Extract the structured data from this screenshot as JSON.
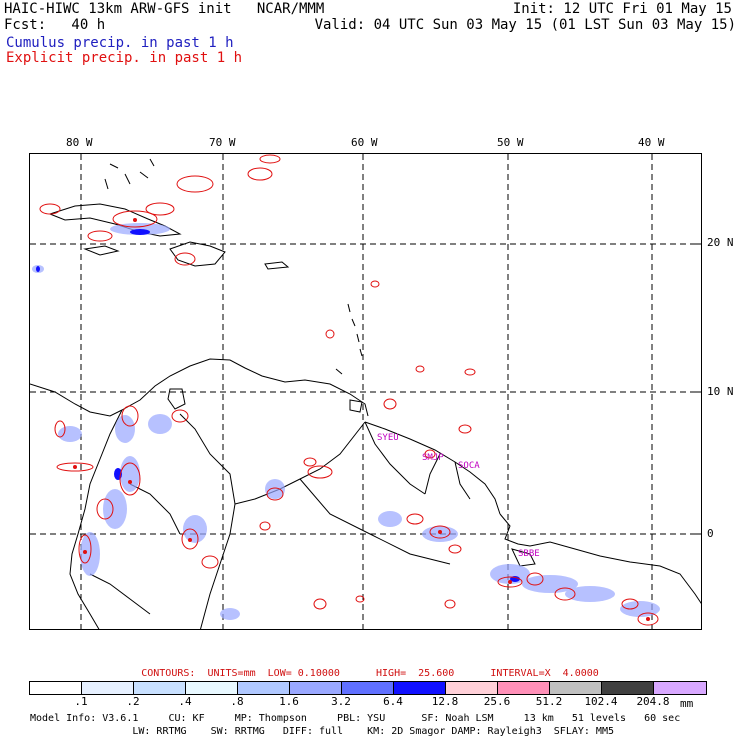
{
  "header": {
    "model_title": "HAIC-HIWC 13km ARW-GFS init   NCAR/MMM",
    "forecast": "Fcst:   40 h",
    "init": "Init: 12 UTC Fri 01 May 15",
    "valid": "Valid: 04 UTC Sun 03 May 15 (01 LST Sun 03 May 15)",
    "cumulus_label": "Cumulus precip. in past 1 h",
    "explicit_label": "Explicit precip. in past 1 h"
  },
  "colors": {
    "cumulus": "#2020c0",
    "explicit": "#e01010",
    "coast": "#000000",
    "station": "#c000c0"
  },
  "map": {
    "longitude_labels": [
      "80 W",
      "70 W",
      "60 W",
      "50 W",
      "40 W"
    ],
    "latitude_labels": [
      "20 N",
      "10 N",
      "0"
    ],
    "stations": [
      "SYEU",
      "SMJP",
      "SOCA",
      "SBBE"
    ]
  },
  "contours": {
    "text": "CONTOURS:  UNITS=mm  LOW= 0.10000      HIGH=  25.600      INTERVAL=X  4.0000"
  },
  "legend": {
    "unit": "mm",
    "ticks": [
      ".1",
      ".2",
      ".4",
      ".8",
      "1.6",
      "3.2",
      "6.4",
      "12.8",
      "25.6",
      "51.2",
      "102.4",
      "204.8"
    ],
    "colors": [
      "#ffffff",
      "#e6f0ff",
      "#c8e0ff",
      "#e8f8ff",
      "#b0c8ff",
      "#9aa8ff",
      "#6070ff",
      "#1010ff",
      "#ffd0d8",
      "#ff90b8",
      "#c0c0c0",
      "#404040",
      "#d8a8ff"
    ]
  },
  "model_info": {
    "line1": "Model Info: V3.6.1     CU: KF     MP: Thompson     PBL: YSU      SF: Noah LSM     13 km   51 levels   60 sec",
    "line2": "                 LW: RRTMG    SW: RRTMG   DIFF: full    KM: 2D Smagor DAMP: Rayleigh3  SFLAY: MM5"
  }
}
